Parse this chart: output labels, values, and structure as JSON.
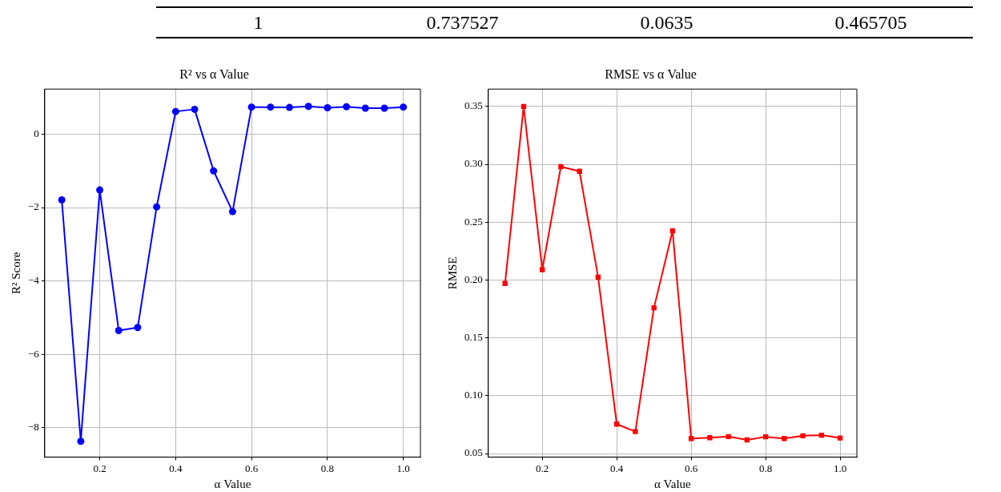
{
  "chart_data": [
    {
      "type": "other",
      "annotations": [
        "1",
        "0.737527",
        "0.0635",
        "0.465705"
      ]
    },
    {
      "type": "line",
      "title": "R² vs α Value",
      "xlabel": "α Value",
      "ylabel": "R² Score",
      "marker": "circle",
      "grid": true,
      "x": [
        0.1,
        0.15,
        0.2,
        0.25,
        0.3,
        0.35,
        0.4,
        0.45,
        0.5,
        0.55,
        0.6,
        0.65,
        0.7,
        0.75,
        0.8,
        0.85,
        0.9,
        0.95,
        1.0
      ],
      "series": [
        {
          "color": "#0000ff",
          "values": [
            -1.79,
            -8.37,
            -1.52,
            -5.35,
            -5.27,
            -1.98,
            0.62,
            0.68,
            -1.0,
            -2.11,
            0.74,
            0.74,
            0.73,
            0.76,
            0.72,
            0.75,
            0.71,
            0.71,
            0.74
          ]
        }
      ],
      "xlim": [
        0.055,
        1.045
      ],
      "xticks": [
        {
          "value": 0.2,
          "label": "0.2"
        },
        {
          "value": 0.4,
          "label": "0.4"
        },
        {
          "value": 0.6,
          "label": "0.6"
        },
        {
          "value": 0.8,
          "label": "0.8"
        },
        {
          "value": 1.0,
          "label": "1.0"
        }
      ],
      "ylim": [
        -8.8,
        1.23
      ],
      "yticks": [
        {
          "value": -8,
          "label": "−8"
        },
        {
          "value": -6,
          "label": "−6"
        },
        {
          "value": -4,
          "label": "−4"
        },
        {
          "value": -2,
          "label": "−2"
        },
        0
      ]
    },
    {
      "type": "line",
      "title": "RMSE vs α Value",
      "xlabel": "α Value",
      "ylabel": "RMSE",
      "marker": "square",
      "grid": true,
      "x": [
        0.1,
        0.15,
        0.2,
        0.25,
        0.3,
        0.35,
        0.4,
        0.45,
        0.5,
        0.55,
        0.6,
        0.65,
        0.7,
        0.75,
        0.8,
        0.85,
        0.9,
        0.95,
        1.0
      ],
      "series": [
        {
          "color": "#ff0000",
          "values": [
            0.197,
            0.35,
            0.209,
            0.298,
            0.294,
            0.2025,
            0.0755,
            0.069,
            0.176,
            0.2425,
            0.063,
            0.0637,
            0.0647,
            0.0618,
            0.0645,
            0.063,
            0.0654,
            0.0659,
            0.0635
          ]
        }
      ],
      "xlim": [
        0.055,
        1.045
      ],
      "xticks": [
        {
          "value": 0.2,
          "label": "0.2"
        },
        {
          "value": 0.4,
          "label": "0.4"
        },
        {
          "value": 0.6,
          "label": "0.6"
        },
        {
          "value": 0.8,
          "label": "0.8"
        },
        {
          "value": 1.0,
          "label": "1.0"
        }
      ],
      "ylim": [
        0.047,
        0.365
      ],
      "yticks": [
        {
          "value": 0.05,
          "label": "0.05"
        },
        {
          "value": 0.1,
          "label": "0.10"
        },
        {
          "value": 0.15,
          "label": "0.15"
        },
        {
          "value": 0.2,
          "label": "0.20"
        },
        {
          "value": 0.25,
          "label": "0.25"
        },
        {
          "value": 0.3,
          "label": "0.30"
        },
        {
          "value": 0.35,
          "label": "0.35"
        }
      ]
    }
  ]
}
